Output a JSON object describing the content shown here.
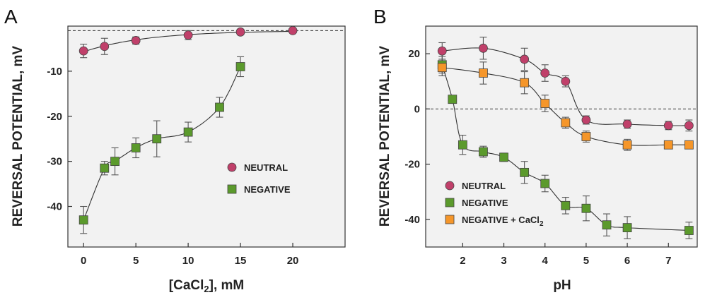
{
  "chart_data": [
    {
      "panel": "A",
      "type": "scatter",
      "xlabel": "[CaCl",
      "xlabel_sub": "2",
      "xlabel_rest": "], mM",
      "ylabel": "REVERSAL POTENTIAL, mV",
      "xlim": [
        -1.5,
        25
      ],
      "ylim": [
        -49,
        0
      ],
      "xticks": [
        0,
        5,
        10,
        15,
        20
      ],
      "yticks": [
        -10,
        -20,
        -30,
        -40
      ],
      "reference_line_y": -1,
      "legend_placement": "center-right",
      "series": [
        {
          "name": "NEUTRAL",
          "marker": "circle",
          "color": "#c0406a",
          "x": [
            0,
            2,
            5,
            10,
            15,
            20
          ],
          "y": [
            -5.5,
            -4.5,
            -3.2,
            -2.0,
            -1.3,
            -1.0
          ],
          "err": [
            1.5,
            1.8,
            0.8,
            1.0,
            0.6,
            0.5
          ]
        },
        {
          "name": "NEGATIVE",
          "marker": "square",
          "color": "#5b9a2c",
          "x": [
            0,
            2,
            3,
            5,
            7,
            10,
            13,
            15
          ],
          "y": [
            -43,
            -31.5,
            -30,
            -27,
            -25,
            -23.5,
            -18,
            -9
          ],
          "err": [
            3,
            1.5,
            3,
            2.2,
            4,
            2.2,
            2.2,
            2.2
          ]
        }
      ]
    },
    {
      "panel": "B",
      "type": "scatter",
      "xlabel": "pH",
      "ylabel": "REVERSAL POTENTIAL, mV",
      "xlim": [
        1.1,
        7.7
      ],
      "ylim": [
        -50,
        30
      ],
      "xticks": [
        2,
        3,
        4,
        5,
        6,
        7
      ],
      "yticks": [
        20,
        0,
        -20,
        -40
      ],
      "reference_line_y": 0,
      "legend_placement": "bottom-left",
      "series": [
        {
          "name": "NEUTRAL",
          "marker": "circle",
          "color": "#c0406a",
          "x": [
            1.5,
            2.5,
            3.5,
            4.0,
            4.5,
            5.0,
            6.0,
            7.0,
            7.5
          ],
          "y": [
            21,
            22,
            18,
            13,
            10,
            -4,
            -5.5,
            -6,
            -6
          ],
          "err": [
            3,
            4,
            4,
            3,
            2,
            1.5,
            1.5,
            1.5,
            2
          ]
        },
        {
          "name": "NEGATIVE",
          "marker": "square",
          "color": "#5b9a2c",
          "x": [
            1.5,
            1.75,
            2.0,
            2.5,
            3.0,
            3.5,
            4.0,
            4.5,
            5.0,
            5.5,
            6.0,
            7.5
          ],
          "y": [
            16,
            3.5,
            -13,
            -15.5,
            -17.5,
            -23,
            -27,
            -35,
            -36,
            -42,
            -43,
            -44
          ],
          "err": [
            3,
            0,
            3.5,
            2,
            1.5,
            4,
            3,
            3,
            4.5,
            4,
            4,
            3
          ]
        },
        {
          "name": "NEGATIVE + CaCl",
          "name_sub": "2",
          "marker": "square",
          "color": "#f5962a",
          "x": [
            1.5,
            2.5,
            3.5,
            4.0,
            4.5,
            5.0,
            6.0,
            7.0,
            7.5
          ],
          "y": [
            15,
            13,
            9.5,
            2,
            -5,
            -10,
            -13,
            -13,
            -13
          ],
          "err": [
            3,
            4,
            4,
            3,
            2,
            2,
            2,
            1,
            1
          ]
        }
      ]
    }
  ]
}
